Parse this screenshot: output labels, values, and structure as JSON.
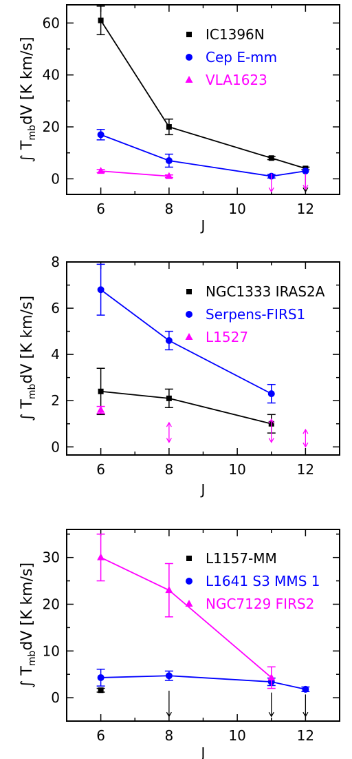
{
  "colors": {
    "black": "#000000",
    "blue": "#0000ff",
    "magenta": "#ff00ff"
  },
  "chart_data": [
    {
      "type": "scatter",
      "xlabel": "J",
      "ylabel_prefix": "∫",
      "ylabel_T": "T",
      "ylabel_sub": "mb",
      "ylabel_rest": "dV [K km/s]",
      "xlim": [
        5,
        13
      ],
      "ylim": [
        -6,
        67
      ],
      "xticks": [
        6,
        8,
        10,
        12
      ],
      "yticks": [
        0,
        20,
        40,
        60
      ],
      "legend_position": "top-right",
      "series": [
        {
          "name": "IC1396N",
          "color": "#000000",
          "marker": "square",
          "connected": true,
          "points": [
            {
              "x": 6,
              "y": 61,
              "err": 5.5
            },
            {
              "x": 8,
              "y": 20,
              "err": 3
            },
            {
              "x": 11,
              "y": 8,
              "err": 0.6
            },
            {
              "x": 12,
              "y": 4,
              "err": 0.5
            }
          ],
          "upper_limits": [
            {
              "x": 12,
              "from": 3,
              "to": -5
            }
          ]
        },
        {
          "name": "Cep E-mm",
          "color": "#0000ff",
          "marker": "circle",
          "connected": true,
          "points": [
            {
              "x": 6,
              "y": 17,
              "err": 2
            },
            {
              "x": 8,
              "y": 7,
              "err": 2.5
            },
            {
              "x": 11,
              "y": 1,
              "err": 0.7
            },
            {
              "x": 12,
              "y": 3,
              "err": 0
            }
          ],
          "upper_limits": []
        },
        {
          "name": "VLA1623",
          "color": "#ff00ff",
          "marker": "triangle",
          "connected": true,
          "points": [
            {
              "x": 6,
              "y": 3,
              "err": 0.6
            },
            {
              "x": 8,
              "y": 1,
              "err": 0.5
            }
          ],
          "upper_limits": [
            {
              "x": 11,
              "from": 2,
              "to": -5
            },
            {
              "x": 12,
              "from": 2,
              "to": -4
            }
          ]
        }
      ]
    },
    {
      "type": "scatter",
      "xlabel": "J",
      "ylabel_prefix": "∫",
      "ylabel_T": "T",
      "ylabel_sub": "mb",
      "ylabel_rest": "dV [K km/s]",
      "xlim": [
        5,
        13
      ],
      "ylim": [
        -0.35,
        8
      ],
      "xticks": [
        6,
        8,
        10,
        12
      ],
      "yticks": [
        0,
        2,
        4,
        6,
        8
      ],
      "legend_position": "top-right",
      "series": [
        {
          "name": "NGC1333 IRAS2A",
          "color": "#000000",
          "marker": "square",
          "connected": true,
          "points": [
            {
              "x": 6,
              "y": 2.4,
              "err": 1.0
            },
            {
              "x": 8,
              "y": 2.1,
              "err": 0.4
            },
            {
              "x": 11,
              "y": 1.0,
              "err": 0.4
            }
          ],
          "upper_limits": []
        },
        {
          "name": "Serpens-FIRS1",
          "color": "#0000ff",
          "marker": "circle",
          "connected": true,
          "points": [
            {
              "x": 6,
              "y": 6.8,
              "err": 1.1
            },
            {
              "x": 8,
              "y": 4.6,
              "err": 0.4
            },
            {
              "x": 11,
              "y": 2.3,
              "err": 0.4
            }
          ],
          "upper_limits": []
        },
        {
          "name": "L1527",
          "color": "#ff00ff",
          "marker": "triangle",
          "connected": false,
          "points": [
            {
              "x": 6,
              "y": 1.6,
              "err": 0.15
            }
          ],
          "upper_limits": [
            {
              "x": 8,
              "from": 1.05,
              "to": 0.2,
              "double": true
            },
            {
              "x": 11,
              "from": 1.2,
              "to": 0.2,
              "double": true
            },
            {
              "x": 12,
              "from": 0.75,
              "to": 0.0,
              "double": true
            }
          ]
        }
      ]
    },
    {
      "type": "scatter",
      "xlabel": "J",
      "ylabel_prefix": "∫",
      "ylabel_T": "T",
      "ylabel_sub": "mb",
      "ylabel_rest": "dV [K km/s]",
      "xlim": [
        5,
        13
      ],
      "ylim": [
        -5,
        36
      ],
      "xticks": [
        6,
        8,
        10,
        12
      ],
      "yticks": [
        0,
        10,
        20,
        30
      ],
      "legend_position": "top-right",
      "series": [
        {
          "name": "L1157-MM",
          "color": "#000000",
          "marker": "square",
          "connected": false,
          "points": [
            {
              "x": 6,
              "y": 1.6,
              "err": 0.4
            }
          ],
          "upper_limits": [
            {
              "x": 8,
              "from": 1.5,
              "to": -4
            },
            {
              "x": 11,
              "from": 1.1,
              "to": -4
            },
            {
              "x": 12,
              "from": 0.7,
              "to": -4
            }
          ]
        },
        {
          "name": "L1641 S3 MMS 1",
          "color": "#0000ff",
          "marker": "circle",
          "connected": true,
          "points": [
            {
              "x": 6,
              "y": 4.3,
              "err": 1.8
            },
            {
              "x": 8,
              "y": 4.7,
              "err": 1.0
            },
            {
              "x": 11,
              "y": 3.4,
              "err": 0.8
            },
            {
              "x": 12,
              "y": 1.8,
              "err": 0.5
            }
          ],
          "upper_limits": []
        },
        {
          "name": "NGC7129 FIRS2",
          "color": "#ff00ff",
          "marker": "triangle",
          "connected": true,
          "points": [
            {
              "x": 6,
              "y": 30,
              "err": 5
            },
            {
              "x": 8,
              "y": 23,
              "err": 5.7
            },
            {
              "x": 11,
              "y": 4.3,
              "err": 2.3
            }
          ],
          "upper_limits": []
        }
      ]
    }
  ]
}
